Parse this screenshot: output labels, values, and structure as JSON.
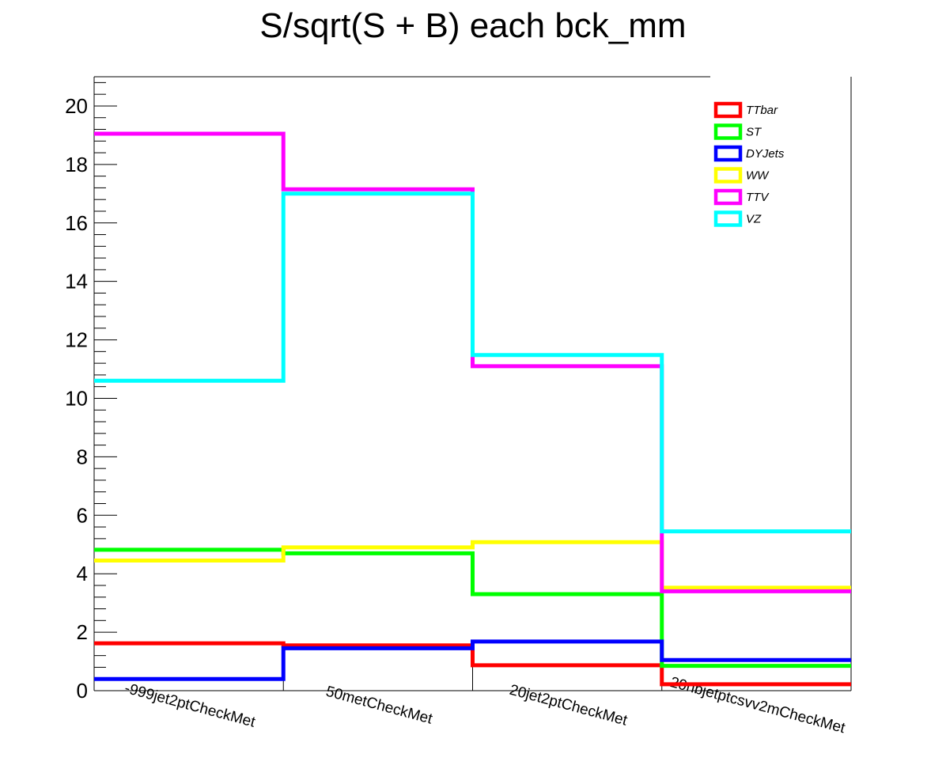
{
  "chart_data": {
    "type": "line",
    "step": true,
    "title": "S/sqrt(S + B) each bck_mm",
    "categories": [
      "-999jet2ptCheckMet",
      "50metCheckMet",
      "20jet2ptCheckMet",
      "20nbjetptcsvv2mCheckMet"
    ],
    "ylim": [
      0,
      21
    ],
    "yticks": [
      0,
      2,
      4,
      6,
      8,
      10,
      12,
      14,
      16,
      18,
      20
    ],
    "ytick_labels": [
      "0",
      "2",
      "4",
      "6",
      "8",
      "10",
      "12",
      "14",
      "16",
      "18",
      "20"
    ],
    "grid": false,
    "legend": "top-right",
    "series": [
      {
        "name": "TTbar",
        "color": "#ff0000",
        "values": [
          1.62,
          1.55,
          0.87,
          0.22
        ]
      },
      {
        "name": "ST",
        "color": "#00ff00",
        "values": [
          4.82,
          4.7,
          3.3,
          0.85
        ]
      },
      {
        "name": "DYJets",
        "color": "#0000ff",
        "values": [
          0.4,
          1.45,
          1.68,
          1.05
        ]
      },
      {
        "name": "WW",
        "color": "#ffff00",
        "values": [
          4.45,
          4.9,
          5.08,
          3.52
        ]
      },
      {
        "name": "TTV",
        "color": "#ff00ff",
        "values": [
          19.05,
          17.15,
          11.1,
          3.4
        ]
      },
      {
        "name": "VZ",
        "color": "#00ffff",
        "values": [
          10.6,
          17.0,
          11.48,
          5.45
        ]
      }
    ]
  }
}
